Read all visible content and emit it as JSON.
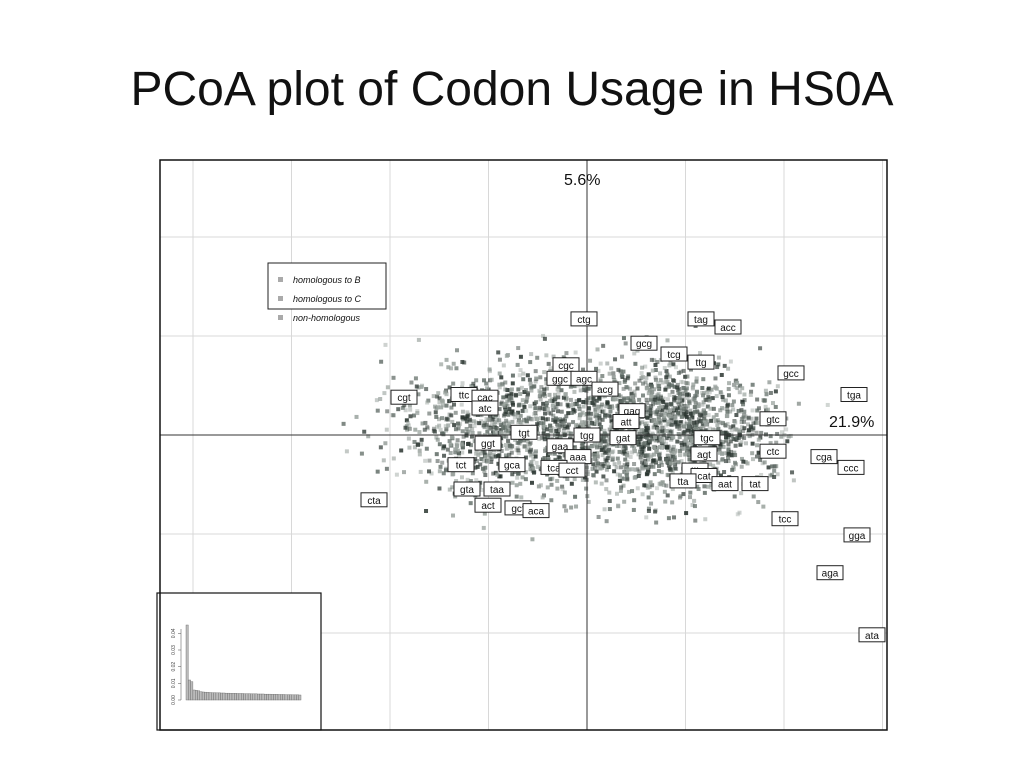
{
  "slide": {
    "title": "PCoA plot of Codon Usage in HS0A"
  },
  "chart_data": [
    {
      "type": "scatter",
      "title": "",
      "axis1_label": "21.9%",
      "axis2_label": "5.6%",
      "grid": true,
      "legend": {
        "placement": "top-left",
        "entries": [
          "homologous to B",
          "homologous to C",
          "non-homologous"
        ]
      },
      "point_colors": [
        "#9aa39e",
        "#5f6b65",
        "#2a3530"
      ],
      "codon_labels": [
        {
          "t": "ctg",
          "x": -0.01,
          "y": 0.43
        },
        {
          "t": "tag",
          "x": 0.38,
          "y": 0.43
        },
        {
          "t": "acc",
          "x": 0.47,
          "y": 0.4
        },
        {
          "t": "gcg",
          "x": 0.19,
          "y": 0.34
        },
        {
          "t": "tcg",
          "x": 0.29,
          "y": 0.3
        },
        {
          "t": "ttg",
          "x": 0.38,
          "y": 0.27
        },
        {
          "t": "gcc",
          "x": 0.68,
          "y": 0.23
        },
        {
          "t": "tga",
          "x": 0.89,
          "y": 0.15
        },
        {
          "t": "cgc",
          "x": -0.07,
          "y": 0.26
        },
        {
          "t": "ggc",
          "x": -0.09,
          "y": 0.21
        },
        {
          "t": "agc",
          "x": -0.01,
          "y": 0.21
        },
        {
          "t": "acg",
          "x": 0.06,
          "y": 0.17
        },
        {
          "t": "cgt",
          "x": -0.61,
          "y": 0.14
        },
        {
          "t": "ttc",
          "x": -0.41,
          "y": 0.15
        },
        {
          "t": "cac",
          "x": -0.34,
          "y": 0.14
        },
        {
          "t": "atc",
          "x": -0.34,
          "y": 0.1
        },
        {
          "t": "gag",
          "x": 0.15,
          "y": 0.09
        },
        {
          "t": "att",
          "x": 0.13,
          "y": 0.05
        },
        {
          "t": "gtc",
          "x": 0.62,
          "y": 0.06
        },
        {
          "t": "tgt",
          "x": -0.21,
          "y": 0.01
        },
        {
          "t": "tgg",
          "x": 0.0,
          "y": 0.0
        },
        {
          "t": "gat",
          "x": 0.12,
          "y": -0.01
        },
        {
          "t": "tgc",
          "x": 0.4,
          "y": -0.01
        },
        {
          "t": "ggt",
          "x": -0.33,
          "y": -0.03
        },
        {
          "t": "gaa",
          "x": -0.09,
          "y": -0.04
        },
        {
          "t": "ctc",
          "x": 0.62,
          "y": -0.06
        },
        {
          "t": "cga",
          "x": 0.79,
          "y": -0.08
        },
        {
          "t": "agt",
          "x": 0.39,
          "y": -0.07
        },
        {
          "t": "aaa",
          "x": -0.03,
          "y": -0.08
        },
        {
          "t": "ccc",
          "x": 0.88,
          "y": -0.12
        },
        {
          "t": "tct",
          "x": -0.42,
          "y": -0.11
        },
        {
          "t": "gca",
          "x": -0.25,
          "y": -0.11
        },
        {
          "t": "tca",
          "x": -0.11,
          "y": -0.12
        },
        {
          "t": "cct",
          "x": -0.05,
          "y": -0.13
        },
        {
          "t": "ttt",
          "x": 0.36,
          "y": -0.13
        },
        {
          "t": "cat",
          "x": 0.39,
          "y": -0.15
        },
        {
          "t": "tta",
          "x": 0.32,
          "y": -0.17
        },
        {
          "t": "aat",
          "x": 0.46,
          "y": -0.18
        },
        {
          "t": "tat",
          "x": 0.56,
          "y": -0.18
        },
        {
          "t": "cta",
          "x": -0.71,
          "y": -0.24
        },
        {
          "t": "gta",
          "x": -0.4,
          "y": -0.2
        },
        {
          "t": "taa",
          "x": -0.3,
          "y": -0.2
        },
        {
          "t": "act",
          "x": -0.33,
          "y": -0.26
        },
        {
          "t": "gct",
          "x": -0.23,
          "y": -0.27
        },
        {
          "t": "aca",
          "x": -0.17,
          "y": -0.28
        },
        {
          "t": "tcc",
          "x": 0.66,
          "y": -0.31
        },
        {
          "t": "gga",
          "x": 0.9,
          "y": -0.37
        },
        {
          "t": "aga",
          "x": 0.81,
          "y": -0.51
        },
        {
          "t": "ata",
          "x": 0.95,
          "y": -0.74
        }
      ]
    },
    {
      "type": "bar",
      "title": "",
      "yticks": [
        "0.00",
        "0.01",
        "0.02",
        "0.03",
        "0.04"
      ],
      "ylim": [
        0,
        0.045
      ],
      "values": [
        0.045,
        0.012,
        0.011,
        0.006,
        0.0058,
        0.0055,
        0.005,
        0.0048,
        0.0047,
        0.0046,
        0.0045,
        0.0044,
        0.0044,
        0.0043,
        0.0043,
        0.0042,
        0.0042,
        0.0041,
        0.0041,
        0.004,
        0.004,
        0.004,
        0.0039,
        0.0039,
        0.0039,
        0.0038,
        0.0038,
        0.0038,
        0.0037,
        0.0037,
        0.0037,
        0.0036,
        0.0036,
        0.0036,
        0.0035,
        0.0035,
        0.0035,
        0.0034,
        0.0034,
        0.0034,
        0.0033,
        0.0033,
        0.0033,
        0.0032,
        0.0032,
        0.0032,
        0.0031,
        0.0031,
        0.0031,
        0.003
      ]
    }
  ]
}
